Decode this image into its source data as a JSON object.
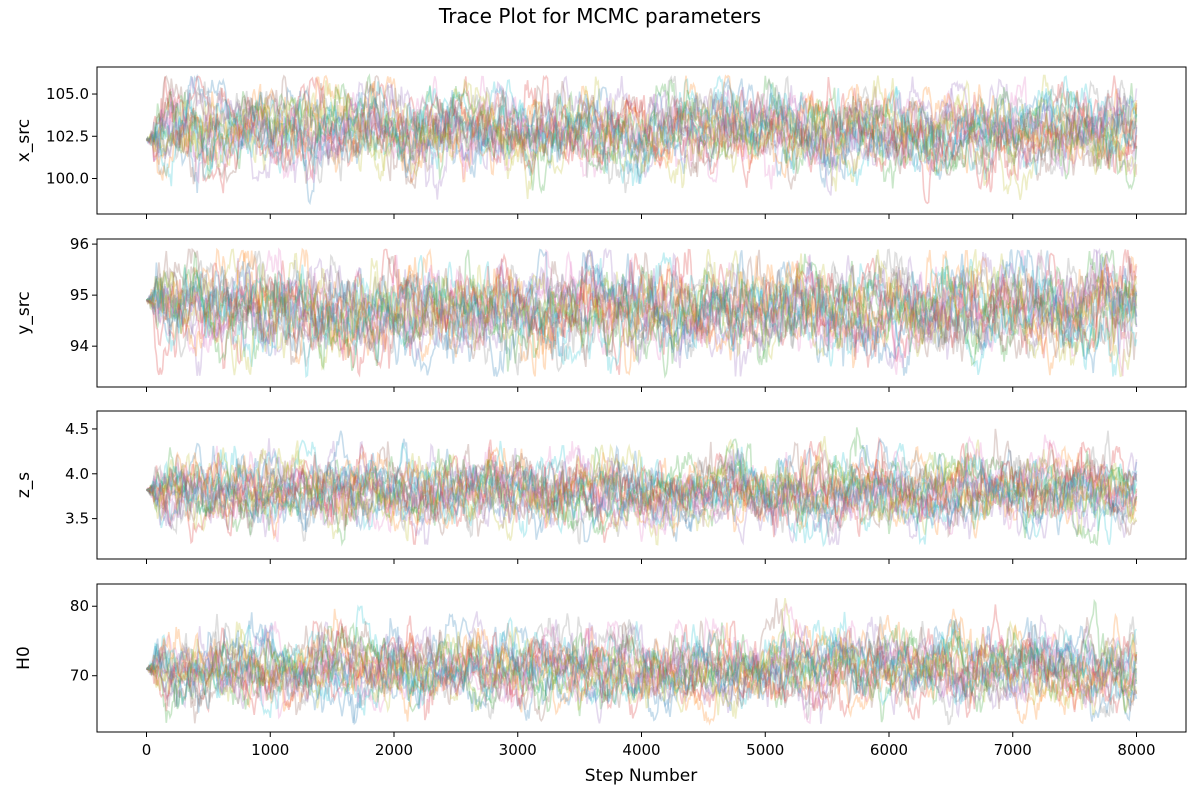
{
  "chart_data": {
    "type": "line",
    "title": "Trace Plot for MCMC parameters",
    "xlabel": "Step Number",
    "xlim": [
      -400,
      8400
    ],
    "xticks": [
      0,
      1000,
      2000,
      3000,
      4000,
      5000,
      6000,
      7000,
      8000
    ],
    "n_steps": 8000,
    "n_walkers": 20,
    "series_colors": [
      "#1f77b4",
      "#ff7f0e",
      "#2ca02c",
      "#d62728",
      "#9467bd",
      "#8c564b",
      "#e377c2",
      "#7f7f7f",
      "#bcbd22",
      "#17becf"
    ],
    "series_opacity": 0.25,
    "panels": [
      {
        "ylabel": "x_src",
        "ylim": [
          97.9,
          106.6
        ],
        "yticks": [
          100.0,
          102.5,
          105.0
        ],
        "ytick_labels": [
          "100.0",
          "102.5",
          "105.0"
        ],
        "initial_value": 102.3,
        "mean": 102.9,
        "std": 1.2,
        "observed_range": [
          98.5,
          106.1
        ]
      },
      {
        "ylabel": "y_src",
        "ylim": [
          93.2,
          96.1
        ],
        "yticks": [
          94,
          95,
          96
        ],
        "ytick_labels": [
          "94",
          "95",
          "96"
        ],
        "initial_value": 94.9,
        "mean": 94.7,
        "std": 0.45,
        "observed_range": [
          93.4,
          95.9
        ]
      },
      {
        "ylabel": "z_s",
        "ylim": [
          3.05,
          4.7
        ],
        "yticks": [
          3.5,
          4.0,
          4.5
        ],
        "ytick_labels": [
          "3.5",
          "4.0",
          "4.5"
        ],
        "initial_value": 3.82,
        "mean": 3.8,
        "std": 0.2,
        "observed_range": [
          3.2,
          4.6
        ]
      },
      {
        "ylabel": "H0",
        "ylim": [
          61.9,
          83.2
        ],
        "yticks": [
          70,
          80
        ],
        "ytick_labels": [
          "70",
          "80"
        ],
        "initial_value": 71.0,
        "mean": 71.0,
        "std": 2.6,
        "observed_range": [
          63.0,
          82.0
        ]
      }
    ]
  }
}
